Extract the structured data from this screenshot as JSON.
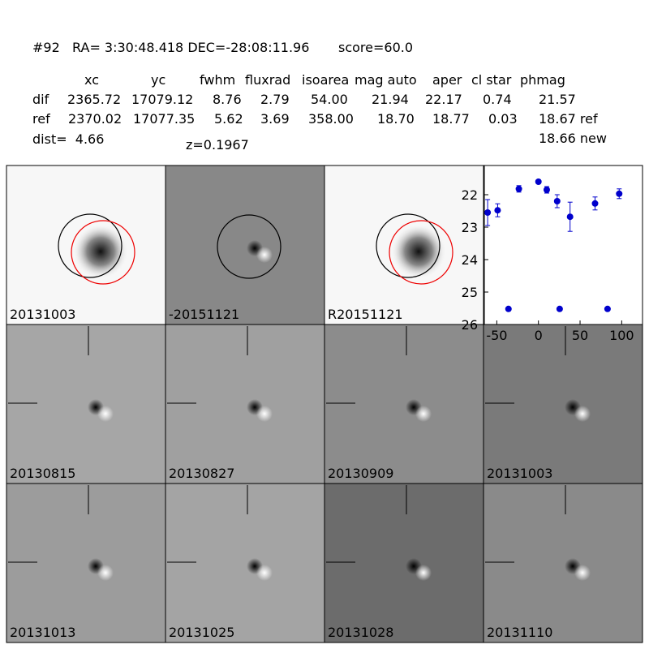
{
  "header": {
    "title": "#92   RA= 3:30:48.418 DEC=-28:08:11.96       score=60.0",
    "columns": [
      "xc",
      "yc",
      "fwhm",
      "fluxrad",
      "isoarea",
      "mag auto",
      "aper",
      "cl star",
      "phmag"
    ],
    "rows": [
      {
        "name": "dif",
        "cells": [
          "2365.72",
          "17079.12",
          "8.76",
          "2.79",
          "54.00",
          "21.94",
          "22.17",
          "0.74",
          "21.57"
        ]
      },
      {
        "name": "ref",
        "cells": [
          "2370.02",
          "17077.35",
          "5.62",
          "3.69",
          "358.00",
          "18.70",
          "18.77",
          "0.03",
          "18.67 ref"
        ]
      }
    ],
    "extra": "18.66 new",
    "dist": "dist=  4.66",
    "z": "z=0.1967"
  },
  "panels": [
    {
      "label": "20131003"
    },
    {
      "label": "-20151121"
    },
    {
      "label": "R20151121"
    },
    {
      "label": "20130815"
    },
    {
      "label": "20130827"
    },
    {
      "label": "20130909"
    },
    {
      "label": "20131003",
      "label_color": "#ff0000"
    },
    {
      "label": "20131013"
    },
    {
      "label": "20131025"
    },
    {
      "label": "20131028"
    },
    {
      "label": "20131110"
    }
  ],
  "chart_data": {
    "type": "scatter",
    "color": "#0000cc",
    "x": [
      -61,
      -49,
      -36,
      -23.5,
      0,
      10,
      22.5,
      25.5,
      38,
      68,
      83,
      97
    ],
    "values": [
      22.55,
      22.48,
      25.52,
      21.82,
      21.6,
      21.85,
      22.2,
      25.52,
      22.68,
      22.27,
      25.52,
      21.97
    ],
    "errors": [
      0.4,
      0.2,
      0.05,
      0.1,
      0.05,
      0.1,
      0.2,
      0.05,
      0.45,
      0.2,
      0.05,
      0.15
    ],
    "xlim": [
      -65,
      125
    ],
    "ylim": [
      26,
      21.1
    ],
    "xticks": [
      -50,
      0,
      50,
      100
    ],
    "yticks": [
      22,
      23,
      24,
      25,
      26
    ]
  }
}
